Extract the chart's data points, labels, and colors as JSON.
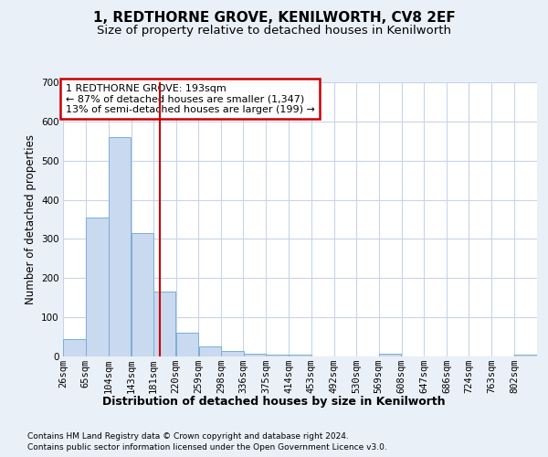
{
  "title": "1, REDTHORNE GROVE, KENILWORTH, CV8 2EF",
  "subtitle": "Size of property relative to detached houses in Kenilworth",
  "xlabel": "Distribution of detached houses by size in Kenilworth",
  "ylabel": "Number of detached properties",
  "footer1": "Contains HM Land Registry data © Crown copyright and database right 2024.",
  "footer2": "Contains public sector information licensed under the Open Government Licence v3.0.",
  "annotation_title": "1 REDTHORNE GROVE: 193sqm",
  "annotation_line1": "← 87% of detached houses are smaller (1,347)",
  "annotation_line2": "13% of semi-detached houses are larger (199) →",
  "property_size": 193,
  "bins": [
    26,
    65,
    104,
    143,
    181,
    220,
    259,
    298,
    336,
    375,
    414,
    453,
    492,
    530,
    569,
    608,
    647,
    686,
    724,
    763,
    802
  ],
  "bin_labels": [
    "26sqm",
    "65sqm",
    "104sqm",
    "143sqm",
    "181sqm",
    "220sqm",
    "259sqm",
    "298sqm",
    "336sqm",
    "375sqm",
    "414sqm",
    "453sqm",
    "492sqm",
    "530sqm",
    "569sqm",
    "608sqm",
    "647sqm",
    "686sqm",
    "724sqm",
    "763sqm",
    "802sqm"
  ],
  "values": [
    45,
    355,
    560,
    315,
    165,
    60,
    25,
    13,
    8,
    5,
    4,
    0,
    0,
    0,
    6,
    0,
    0,
    0,
    0,
    0,
    4
  ],
  "bar_color": "#c9d9f0",
  "bar_edge_color": "#7bafd4",
  "vline_color": "#cc0000",
  "vline_x": 193,
  "annotation_box_color": "#cc0000",
  "annotation_bg_color": "#ffffff",
  "bg_color": "#eaf0f8",
  "plot_bg_color": "#ffffff",
  "grid_color": "#c8d4e8",
  "ylim": [
    0,
    700
  ],
  "yticks": [
    0,
    100,
    200,
    300,
    400,
    500,
    600,
    700
  ],
  "title_fontsize": 11,
  "subtitle_fontsize": 9.5,
  "axis_label_fontsize": 8.5,
  "tick_fontsize": 7.5,
  "annotation_fontsize": 8,
  "footer_fontsize": 6.5
}
